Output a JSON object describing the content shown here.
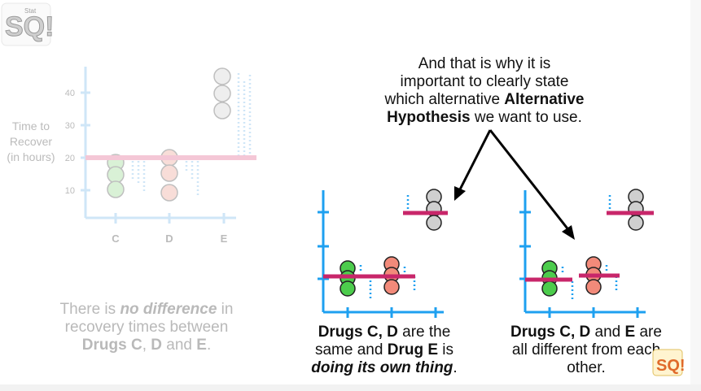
{
  "logo": {
    "text": "SQ!",
    "sub": "StatQuest"
  },
  "left_chart": {
    "ylabel": [
      "Time to",
      "Recover",
      "(in hours)"
    ],
    "yticks": [
      "40",
      "30",
      "20",
      "10"
    ],
    "categories": [
      "C",
      "D",
      "E"
    ]
  },
  "left_caption": {
    "l1_a": "There is ",
    "l1_b": "no difference",
    "l1_c": " in",
    "l2": "recovery times between",
    "l3_a": "Drugs C",
    "l3_b": ", ",
    "l3_c": "D",
    "l3_d": " and ",
    "l3_e": "E",
    "l3_f": "."
  },
  "top_text": {
    "l1": "And that is why it is",
    "l2": "important to clearly state",
    "l3_a": "which alternative ",
    "l3_b": "Alternative",
    "l4_a": "Hypothesis",
    "l4_b": " we want to use."
  },
  "mid_caption": {
    "l1_a": "Drugs C, D",
    "l1_b": " are the",
    "l2_a": "same and ",
    "l2_b": "Drug E",
    "l2_c": " is",
    "l3_a": "doing its own thing",
    "l3_b": "."
  },
  "right_caption": {
    "l1_a": "Drugs C, D",
    "l1_b": " and ",
    "l1_c": "E",
    "l1_d": " are",
    "l2": "all different from each",
    "l3": "other."
  },
  "colors": {
    "axis_blue": "#1ea0f0",
    "mean_pink": "#c8266a",
    "green": "#4ccc4c",
    "salmon": "#f28a7a",
    "gray": "#cfcfcf"
  }
}
